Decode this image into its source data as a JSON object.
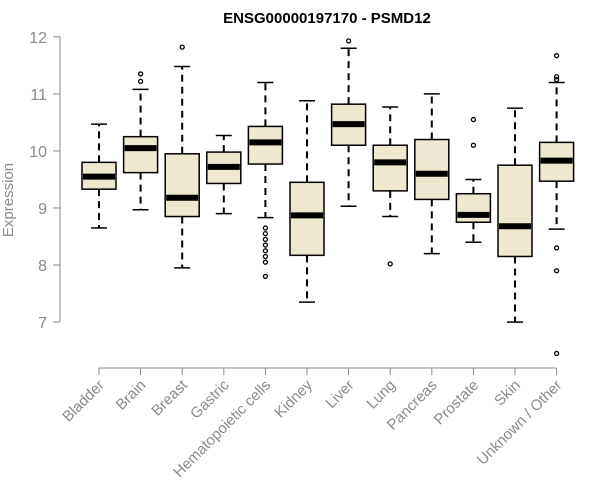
{
  "chart_data": {
    "type": "boxplot",
    "title": "ENSG00000197170 - PSMD12",
    "xlabel": "",
    "ylabel": "Expression",
    "ylim": [
      6.3,
      12.05
    ],
    "yticks": [
      7,
      8,
      9,
      10,
      11,
      12
    ],
    "box_fill": "#efe8d1",
    "median_color": "#000000",
    "categories": [
      "Bladder",
      "Brain",
      "Breast",
      "Gastric",
      "Hematopoietic cells",
      "Kidney",
      "Liver",
      "Lung",
      "Pancreas",
      "Prostate",
      "Skin",
      "Unknown / Other"
    ],
    "boxes": [
      {
        "whisker_low": 8.65,
        "q1": 9.33,
        "median": 9.55,
        "q3": 9.8,
        "whisker_high": 10.47,
        "outliers": []
      },
      {
        "whisker_low": 8.97,
        "q1": 9.62,
        "median": 10.05,
        "q3": 10.25,
        "whisker_high": 11.08,
        "outliers": [
          11.22,
          11.35
        ]
      },
      {
        "whisker_low": 7.95,
        "q1": 8.85,
        "median": 9.18,
        "q3": 9.95,
        "whisker_high": 11.48,
        "outliers": [
          11.82
        ]
      },
      {
        "whisker_low": 8.9,
        "q1": 9.43,
        "median": 9.72,
        "q3": 9.98,
        "whisker_high": 10.27,
        "outliers": []
      },
      {
        "whisker_low": 8.83,
        "q1": 9.77,
        "median": 10.15,
        "q3": 10.43,
        "whisker_high": 11.2,
        "outliers": [
          8.65,
          8.55,
          8.45,
          8.35,
          8.25,
          8.15,
          8.05,
          7.8
        ]
      },
      {
        "whisker_low": 7.35,
        "q1": 8.17,
        "median": 8.87,
        "q3": 9.45,
        "whisker_high": 10.88,
        "outliers": []
      },
      {
        "whisker_low": 9.03,
        "q1": 10.1,
        "median": 10.47,
        "q3": 10.82,
        "whisker_high": 11.8,
        "outliers": [
          11.93
        ]
      },
      {
        "whisker_low": 8.85,
        "q1": 9.3,
        "median": 9.8,
        "q3": 10.1,
        "whisker_high": 10.77,
        "outliers": [
          8.02
        ]
      },
      {
        "whisker_low": 8.2,
        "q1": 9.15,
        "median": 9.6,
        "q3": 10.2,
        "whisker_high": 11.0,
        "outliers": []
      },
      {
        "whisker_low": 8.4,
        "q1": 8.75,
        "median": 8.88,
        "q3": 9.25,
        "whisker_high": 9.5,
        "outliers": [
          10.1,
          10.55
        ]
      },
      {
        "whisker_low": 7.0,
        "q1": 8.15,
        "median": 8.68,
        "q3": 9.75,
        "whisker_high": 10.75,
        "outliers": []
      },
      {
        "whisker_low": 8.63,
        "q1": 9.47,
        "median": 9.83,
        "q3": 10.15,
        "whisker_high": 11.2,
        "outliers": [
          11.25,
          11.3,
          11.67,
          8.3,
          7.9,
          6.45
        ]
      }
    ]
  }
}
